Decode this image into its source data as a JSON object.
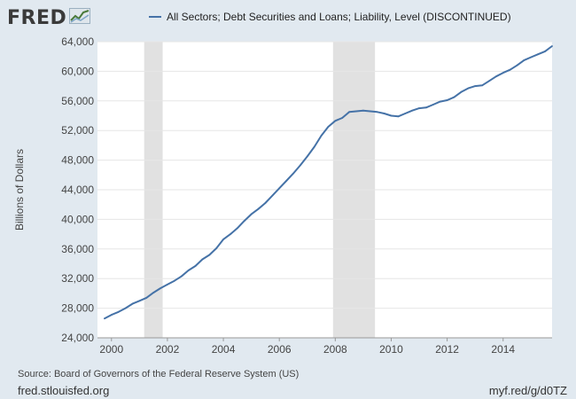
{
  "header": {
    "logo_text": "FRED",
    "logo_icon": "line-graph-icon"
  },
  "colors": {
    "background": "#e1e9f0",
    "plot_background": "#ffffff",
    "series_line": "#4572a7",
    "recession_shade": "#e1e1e1",
    "gridline": "#e6e6e6"
  },
  "footer": {
    "source": "Source: Board of Governors of the Federal Reserve System (US)",
    "site": "fred.stlouisfed.org",
    "short_url": "myf.red/g/d0TZ"
  },
  "chart_data": {
    "type": "line",
    "title": "",
    "xlabel": "",
    "ylabel": "Billions of Dollars",
    "grid": true,
    "legend_position": "top",
    "xlim": [
      1999.5,
      2015.75
    ],
    "ylim": [
      24000,
      64000
    ],
    "x_ticks": [
      2000,
      2002,
      2004,
      2006,
      2008,
      2010,
      2012,
      2014
    ],
    "x_tick_labels": [
      "2000",
      "2002",
      "2004",
      "2006",
      "2008",
      "2010",
      "2012",
      "2014"
    ],
    "y_ticks": [
      24000,
      28000,
      32000,
      36000,
      40000,
      44000,
      48000,
      52000,
      56000,
      60000,
      64000
    ],
    "y_tick_labels": [
      "24,000",
      "28,000",
      "32,000",
      "36,000",
      "40,000",
      "44,000",
      "48,000",
      "52,000",
      "56,000",
      "60,000",
      "64,000"
    ],
    "recessions": [
      [
        2001.17,
        2001.83
      ],
      [
        2007.92,
        2009.42
      ]
    ],
    "series": [
      {
        "name": "All Sectors; Debt Securities and Loans; Liability, Level (DISCONTINUED)",
        "x": [
          1999.75,
          2000.0,
          2000.25,
          2000.5,
          2000.75,
          2001.0,
          2001.25,
          2001.5,
          2001.75,
          2002.0,
          2002.25,
          2002.5,
          2002.75,
          2003.0,
          2003.25,
          2003.5,
          2003.75,
          2004.0,
          2004.25,
          2004.5,
          2004.75,
          2005.0,
          2005.25,
          2005.5,
          2005.75,
          2006.0,
          2006.25,
          2006.5,
          2006.75,
          2007.0,
          2007.25,
          2007.5,
          2007.75,
          2008.0,
          2008.25,
          2008.5,
          2008.75,
          2009.0,
          2009.25,
          2009.5,
          2009.75,
          2010.0,
          2010.25,
          2010.5,
          2010.75,
          2011.0,
          2011.25,
          2011.5,
          2011.75,
          2012.0,
          2012.25,
          2012.5,
          2012.75,
          2013.0,
          2013.25,
          2013.5,
          2013.75,
          2014.0,
          2014.25,
          2014.5,
          2014.75,
          2015.0,
          2015.25,
          2015.5,
          2015.75
        ],
        "values": [
          26600,
          27100,
          27500,
          28000,
          28600,
          29000,
          29400,
          30100,
          30700,
          31200,
          31700,
          32300,
          33100,
          33700,
          34600,
          35200,
          36100,
          37300,
          38000,
          38800,
          39800,
          40700,
          41400,
          42200,
          43200,
          44200,
          45200,
          46200,
          47300,
          48500,
          49800,
          51300,
          52500,
          53300,
          53700,
          54500,
          54600,
          54700,
          54600,
          54500,
          54300,
          54000,
          53900,
          54300,
          54700,
          55000,
          55100,
          55500,
          55900,
          56100,
          56500,
          57200,
          57700,
          58000,
          58100,
          58700,
          59300,
          59800,
          60200,
          60800,
          61500,
          61900,
          62300,
          62700,
          63400
        ]
      }
    ]
  }
}
